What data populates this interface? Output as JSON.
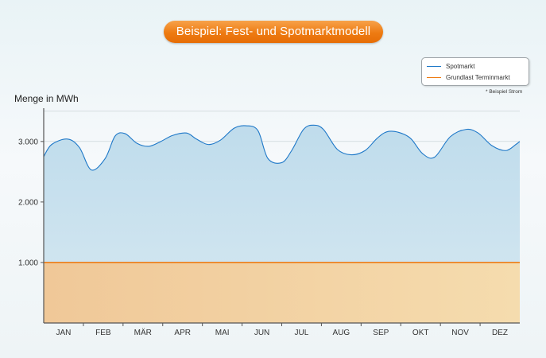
{
  "header": {
    "title": "Beispiel: Fest- und Spotmarktmodell"
  },
  "legend": {
    "spot_label": "Spotmarkt",
    "base_label": "Grundlast Terminmarkt"
  },
  "note": "* Beispiel Strom",
  "chart_data": {
    "type": "area",
    "title": "Beispiel: Fest- und Spotmarktmodell",
    "ylabel": "Menge in MWh",
    "xlabel": "",
    "categories": [
      "JAN",
      "FEB",
      "MÄR",
      "APR",
      "MAI",
      "JUN",
      "JUL",
      "AUG",
      "SEP",
      "OKT",
      "NOV",
      "DEZ"
    ],
    "yticks": [
      1000,
      2000,
      3000
    ],
    "ytick_labels": [
      "1.000",
      "2.000",
      "3.000"
    ],
    "ylim": [
      0,
      3550
    ],
    "grid": true,
    "legend_position": "top-right",
    "colors": {
      "spot_line": "#1e78c8",
      "spot_fill": "#c9e3f0",
      "base_line": "#ee7b12",
      "base_fill": "#f2d3a6",
      "axis": "#555555",
      "grid": "#c4cdd2"
    },
    "series": [
      {
        "name": "Spotmarkt",
        "x": [
          -0.5,
          -0.3,
          0.1,
          0.4,
          0.7,
          1.05,
          1.3,
          1.55,
          1.85,
          2.15,
          2.45,
          2.75,
          3.1,
          3.35,
          3.65,
          3.95,
          4.3,
          4.6,
          4.9,
          5.15,
          5.5,
          5.75,
          6.05,
          6.3,
          6.55,
          6.9,
          7.25,
          7.6,
          7.9,
          8.15,
          8.45,
          8.75,
          9.05,
          9.35,
          9.75,
          10.15,
          10.45,
          10.8,
          11.15,
          11.4,
          11.5
        ],
        "values": [
          2750,
          2950,
          3040,
          2900,
          2530,
          2720,
          3090,
          3130,
          2970,
          2920,
          3000,
          3100,
          3140,
          3040,
          2950,
          3020,
          3220,
          3260,
          3180,
          2720,
          2650,
          2850,
          3200,
          3270,
          3200,
          2870,
          2780,
          2850,
          3050,
          3160,
          3150,
          3050,
          2800,
          2740,
          3080,
          3200,
          3140,
          2930,
          2850,
          2950,
          3000
        ]
      },
      {
        "name": "Grundlast Terminmarkt",
        "x": [
          -0.5,
          11.5
        ],
        "values": [
          1000,
          1000
        ]
      }
    ]
  }
}
